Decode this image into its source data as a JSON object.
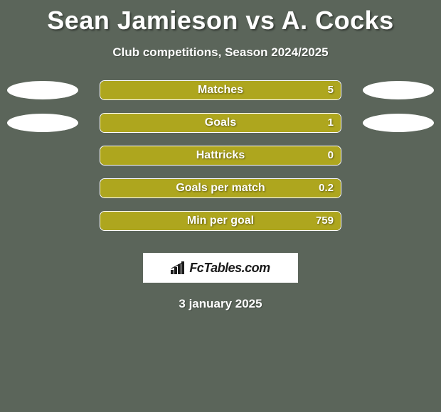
{
  "title": "Sean Jamieson vs A. Cocks",
  "subtitle": "Club competitions, Season 2024/2025",
  "date": "3 january 2025",
  "logo_text": "FcTables.com",
  "colors": {
    "background": "#5b655a",
    "bar_fill": "#aea61e",
    "ellipse": "#ffffff",
    "text": "#ffffff"
  },
  "rows": [
    {
      "label": "Matches",
      "value": "5",
      "fill_pct": 100,
      "show_ellipses": true
    },
    {
      "label": "Goals",
      "value": "1",
      "fill_pct": 100,
      "show_ellipses": true
    },
    {
      "label": "Hattricks",
      "value": "0",
      "fill_pct": 100,
      "show_ellipses": false
    },
    {
      "label": "Goals per match",
      "value": "0.2",
      "fill_pct": 100,
      "show_ellipses": false
    },
    {
      "label": "Min per goal",
      "value": "759",
      "fill_pct": 100,
      "show_ellipses": false
    }
  ]
}
